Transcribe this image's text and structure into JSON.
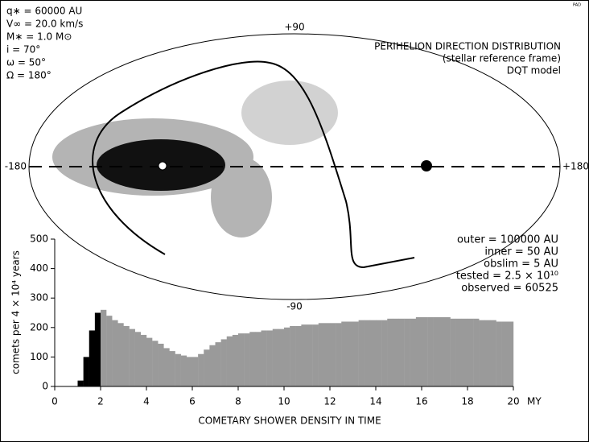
{
  "chart_data": {
    "type": "histogram",
    "params": [
      "q∗ = 60000 AU",
      "V∞ = 20.0 km/s",
      "M∗ = 1.0 M⊙",
      "i  =  70°",
      "ω  =  50°",
      "Ω = 180°"
    ],
    "title_lines": [
      "PERIHELION DIRECTION DISTRIBUTION",
      "(stellar reference frame)",
      "DQT model"
    ],
    "sky_labels": {
      "top": "+90",
      "bottom": "-90",
      "left": "-180",
      "right": "+180"
    },
    "stats": [
      "outer = 100000 AU",
      "inner = 50 AU",
      "obslim = 5 AU",
      "tested = 2.5 × 10¹⁰",
      "observed = 60525"
    ],
    "corner_note": "PAD",
    "xlabel": "COMETARY SHOWER DENSITY IN TIME",
    "xunit": "MY",
    "ylabel": "comets per 4 × 10⁴ years",
    "bins": [
      0,
      0.25,
      0.5,
      0.75,
      1,
      1.25,
      1.5,
      1.75,
      2,
      2.25,
      2.5,
      2.75,
      3,
      3.25,
      3.5,
      3.75,
      4,
      4.25,
      4.5,
      4.75,
      5,
      5.25,
      5.5,
      5.75,
      6,
      6.25,
      6.5,
      6.75,
      7,
      7.25,
      7.5,
      7.75,
      8,
      8.25,
      8.5,
      8.75,
      9,
      9.25,
      9.5,
      9.75,
      10,
      10.25,
      10.5,
      10.75,
      11,
      11.25,
      11.5,
      11.75,
      12,
      12.25,
      12.5,
      12.75,
      13,
      13.25,
      13.5,
      13.75,
      14,
      14.25,
      14.5,
      14.75,
      15,
      15.25,
      15.5,
      15.75,
      16,
      16.25,
      16.5,
      16.75,
      17,
      17.25,
      17.5,
      17.75,
      18,
      18.25,
      18.5,
      18.75,
      19,
      19.25,
      19.5,
      19.75,
      20
    ],
    "values": [
      0,
      0,
      0,
      0,
      20,
      100,
      190,
      250,
      260,
      240,
      225,
      215,
      205,
      195,
      185,
      175,
      165,
      155,
      145,
      130,
      120,
      110,
      105,
      100,
      100,
      110,
      125,
      140,
      150,
      160,
      170,
      175,
      180,
      180,
      185,
      185,
      190,
      190,
      195,
      195,
      200,
      205,
      205,
      210,
      210,
      210,
      215,
      215,
      215,
      215,
      220,
      220,
      220,
      225,
      225,
      225,
      225,
      225,
      230,
      230,
      230,
      230,
      230,
      235,
      235,
      235,
      235,
      235,
      235,
      230,
      230,
      230,
      230,
      230,
      225,
      225,
      225,
      220,
      220,
      220
    ],
    "color": "#9a9a9a",
    "highlight_color": "#000000",
    "highlight_xlim": [
      0,
      2
    ],
    "xlim": [
      0,
      20
    ],
    "xticks": [
      0,
      2,
      4,
      6,
      8,
      10,
      12,
      14,
      16,
      18,
      20
    ],
    "ylim": [
      0,
      500
    ],
    "yticks": [
      0,
      100,
      200,
      300,
      400,
      500
    ]
  }
}
